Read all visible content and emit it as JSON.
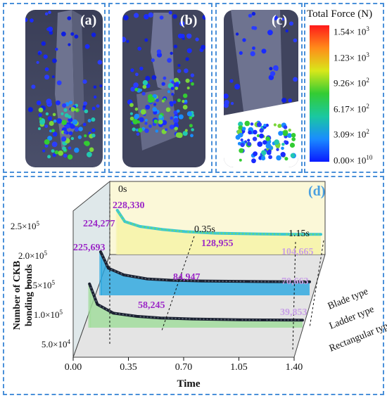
{
  "panels": {
    "a_label": "(a)",
    "b_label": "(b)",
    "c_label": "(c)",
    "d_label": "(d)"
  },
  "colorbar": {
    "title": "Total Force (N)",
    "ticks": [
      {
        "mant": "1.54",
        "exp": "3"
      },
      {
        "mant": "1.23",
        "exp": "3"
      },
      {
        "mant": "9.26",
        "exp": "2"
      },
      {
        "mant": "6.17",
        "exp": "2"
      },
      {
        "mant": "3.09",
        "exp": "2"
      },
      {
        "mant": "0.00",
        "exp": "10"
      }
    ],
    "colors": [
      "#ff1a1a",
      "#ff8c1a",
      "#d8e81a",
      "#33cc33",
      "#1ac8a0",
      "#1a8cff",
      "#0a1aff"
    ]
  },
  "chart_data": {
    "type": "line",
    "title": "",
    "xlabel": "Time",
    "ylabel": "Number of CKB bonding bonds",
    "xlim": [
      0.0,
      1.4
    ],
    "x_ticks": [
      "0.00",
      "0.35",
      "0.70",
      "1.05",
      "1.40"
    ],
    "y_ticks": [
      {
        "mant": "5.0",
        "exp": "4"
      },
      {
        "mant": "1.0",
        "exp": "5"
      },
      {
        "mant": "1.5",
        "exp": "5"
      },
      {
        "mant": "2.0",
        "exp": "5"
      },
      {
        "mant": "2.5",
        "exp": "5"
      }
    ],
    "series": [
      {
        "name": "Blade type",
        "x": [
          0.05,
          0.1,
          0.2,
          0.35,
          0.5,
          0.7,
          1.0,
          1.15,
          1.4
        ],
        "values": [
          228330,
          170000,
          145000,
          128955,
          118000,
          110000,
          106000,
          104665,
          104000
        ],
        "color": "#f5f5a0"
      },
      {
        "name": "Ladder type",
        "x": [
          0.05,
          0.1,
          0.2,
          0.35,
          0.5,
          0.7,
          1.0,
          1.15,
          1.4
        ],
        "values": [
          224277,
          140000,
          105000,
          84947,
          78000,
          74000,
          71500,
          70663,
          70000
        ],
        "color": "#3ab0e8"
      },
      {
        "name": "Rectangular type",
        "x": [
          0.05,
          0.1,
          0.2,
          0.35,
          0.5,
          0.7,
          1.0,
          1.15,
          1.4
        ],
        "values": [
          225693,
          120000,
          75000,
          58245,
          50000,
          45000,
          41000,
          39853,
          39000
        ],
        "color": "#a6e0a0"
      }
    ],
    "time_markers": [
      "0s",
      "0.35s",
      "1.15s"
    ],
    "annotations": [
      {
        "text": "228,330",
        "color": "#9b27c7"
      },
      {
        "text": "224,277",
        "color": "#9b27c7"
      },
      {
        "text": "225,693",
        "color": "#9b27c7"
      },
      {
        "text": "128,955",
        "color": "#9b27c7"
      },
      {
        "text": "84,947",
        "color": "#9b27c7"
      },
      {
        "text": "58,245",
        "color": "#9b27c7"
      },
      {
        "text": "104,665",
        "color": "#c8a0e6"
      },
      {
        "text": "70,663",
        "color": "#c8a0e6"
      },
      {
        "text": "39,853",
        "color": "#c8a0e6"
      }
    ]
  }
}
